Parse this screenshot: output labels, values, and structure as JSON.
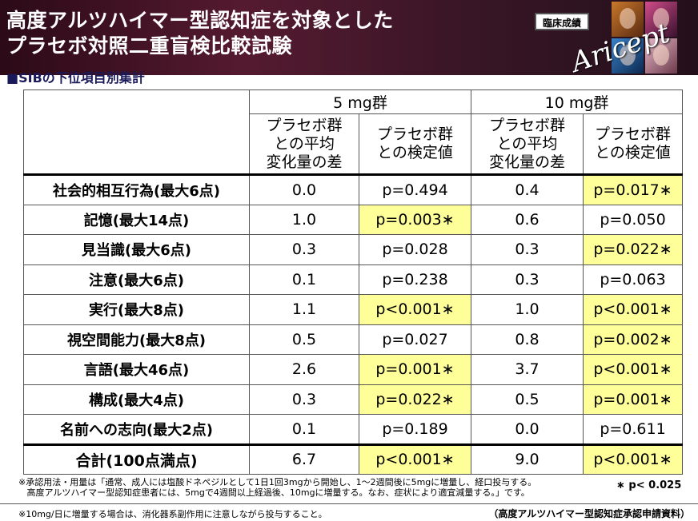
{
  "header": {
    "title_line1": "高度アルツハイマー型認知症を対象とした",
    "title_line2": "プラセボ対照二重盲検比較試験",
    "badge": "臨床成績",
    "logo": "Aricept"
  },
  "subtitle": "■SIBの下位項目別集計",
  "table": {
    "group_headers": [
      "5 mg群",
      "10 mg群"
    ],
    "col_headers": [
      "プラセボ群\nとの平均\n変化量の差",
      "プラセボ群\nとの検定値",
      "プラセボ群\nとの平均\n変化量の差",
      "プラセボ群\nとの検定値"
    ],
    "rows": [
      {
        "label": "社会的相互行為(最大6点)",
        "v5": "0.0",
        "p5": "p=0.494",
        "v10": "0.4",
        "p10": "p=0.017∗"
      },
      {
        "label": "記憶(最大14点)",
        "v5": "1.0",
        "p5": "p=0.003∗",
        "v10": "0.6",
        "p10": "p=0.050"
      },
      {
        "label": "見当識(最大6点)",
        "v5": "0.3",
        "p5": "p=0.028",
        "v10": "0.3",
        "p10": "p=0.022∗"
      },
      {
        "label": "注意(最大6点)",
        "v5": "0.1",
        "p5": "p=0.238",
        "v10": "0.3",
        "p10": "p=0.063"
      },
      {
        "label": "実行(最大8点)",
        "v5": "1.1",
        "p5": "p<0.001∗",
        "v10": "1.0",
        "p10": "p<0.001∗"
      },
      {
        "label": "視空間能力(最大8点)",
        "v5": "0.5",
        "p5": "p=0.027",
        "v10": "0.8",
        "p10": "p=0.002∗"
      },
      {
        "label": "言語(最大46点)",
        "v5": "2.6",
        "p5": "p=0.001∗",
        "v10": "3.7",
        "p10": "p<0.001∗"
      },
      {
        "label": "構成(最大4点)",
        "v5": "0.3",
        "p5": "p=0.022∗",
        "v10": "0.5",
        "p10": "p=0.001∗"
      },
      {
        "label": "名前への志向(最大2点)",
        "v5": "0.1",
        "p5": "p=0.189",
        "v10": "0.0",
        "p10": "p=0.611"
      }
    ],
    "total": {
      "label": "合計(100点満点)",
      "v5": "6.7",
      "p5": "p<0.001∗",
      "v10": "9.0",
      "p10": "p<0.001∗"
    }
  },
  "footnote1": "※承認用法・用量は「通常、成人には塩酸ドネペジルとして1日1回3mgから開始し、1～2週間後に5mgに増量し、経口投与する。\n   高度アルツハイマー型認知症患者には、5mgで4週間以上経過後、10mgに増量する。なお、症状により適宜減量する。」です。",
  "significance_note": "∗ p< 0.025",
  "footnote2": "※10mg/日に増量する場合は、消化器系副作用に注意しながら投与すること。",
  "source": "（高度アルツハイマー型認知症承認申請資料）",
  "colors": {
    "highlight": "#ffff99",
    "header_bg": "#4a1a2c"
  }
}
